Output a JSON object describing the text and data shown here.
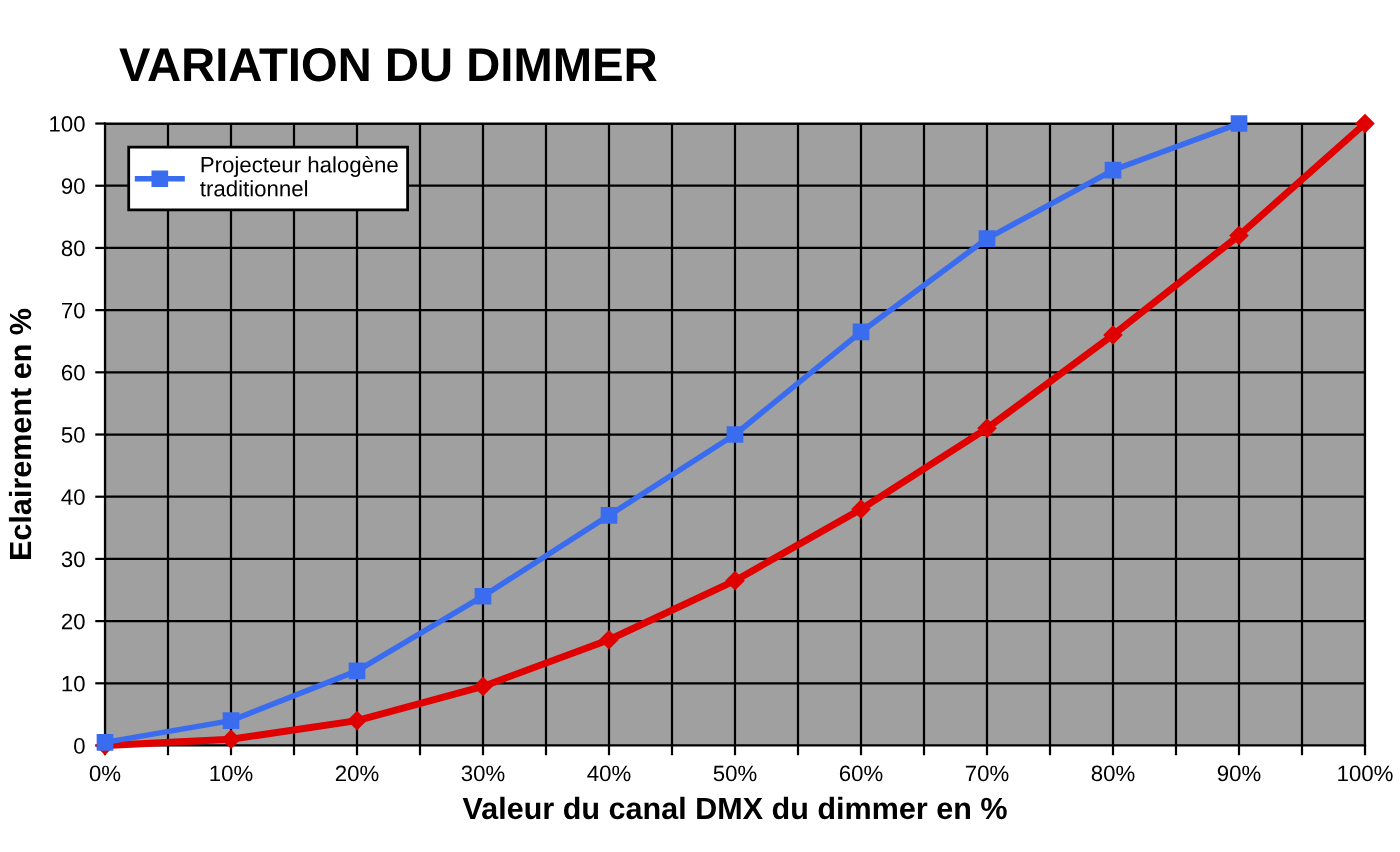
{
  "chart_data": {
    "type": "line",
    "title": "VARIATION DU DIMMER",
    "xlabel": "Valeur du canal DMX du dimmer en %",
    "ylabel": "Eclairement en %",
    "xlim": [
      0,
      100
    ],
    "ylim": [
      0,
      100
    ],
    "xticks": [
      {
        "value": 0,
        "label": "0%"
      },
      {
        "value": 5,
        "label": null
      },
      {
        "value": 10,
        "label": "10%"
      },
      {
        "value": 15,
        "label": null
      },
      {
        "value": 20,
        "label": "20%"
      },
      {
        "value": 25,
        "label": null
      },
      {
        "value": 30,
        "label": "30%"
      },
      {
        "value": 35,
        "label": null
      },
      {
        "value": 40,
        "label": "40%"
      },
      {
        "value": 45,
        "label": null
      },
      {
        "value": 50,
        "label": "50%"
      },
      {
        "value": 55,
        "label": null
      },
      {
        "value": 60,
        "label": "60%"
      },
      {
        "value": 65,
        "label": null
      },
      {
        "value": 70,
        "label": "70%"
      },
      {
        "value": 75,
        "label": null
      },
      {
        "value": 80,
        "label": "80%"
      },
      {
        "value": 85,
        "label": null
      },
      {
        "value": 90,
        "label": "90%"
      },
      {
        "value": 95,
        "label": null
      },
      {
        "value": 100,
        "label": "100%"
      }
    ],
    "yticks": [
      0,
      10,
      20,
      30,
      40,
      50,
      60,
      70,
      80,
      90,
      100
    ],
    "grid": true,
    "legend": "top left",
    "series": [
      {
        "color": "#e00000",
        "marker": "diamond",
        "x": [
          0,
          10,
          20,
          30,
          40,
          50,
          60,
          70,
          80,
          90,
          100
        ],
        "values": [
          0,
          1,
          4,
          9.5,
          17,
          26.5,
          38,
          51,
          66,
          82,
          100
        ]
      },
      {
        "name": "Projecteur halogène\ntraditionnel",
        "color": "#3a6cf0",
        "marker": "square",
        "x": [
          0,
          10,
          20,
          30,
          40,
          50,
          60,
          70,
          80,
          90
        ],
        "values": [
          0.5,
          4,
          12,
          24,
          37,
          50,
          66.5,
          81.5,
          92.5,
          100
        ]
      }
    ]
  }
}
